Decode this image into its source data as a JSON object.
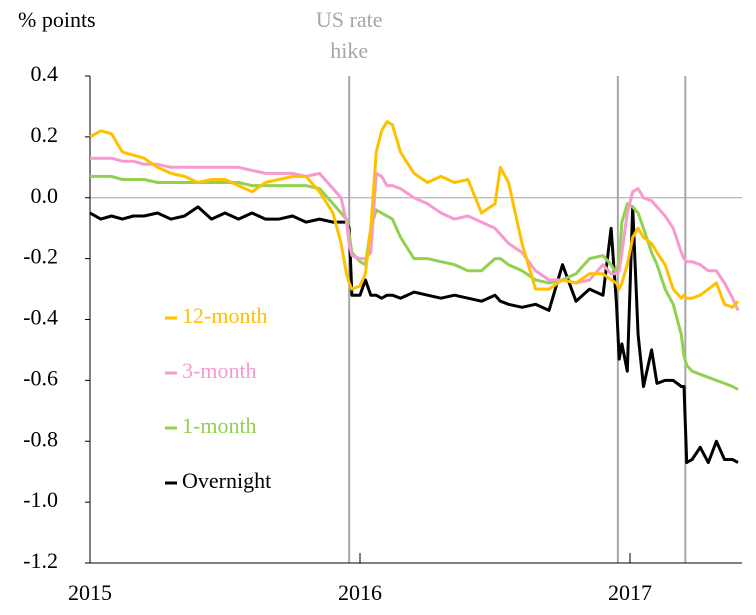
{
  "chart_data": {
    "type": "line",
    "y_label": "% points",
    "x": [
      2015.0,
      2015.04,
      2015.08,
      2015.12,
      2015.16,
      2015.2,
      2015.25,
      2015.3,
      2015.35,
      2015.4,
      2015.45,
      2015.5,
      2015.55,
      2015.6,
      2015.65,
      2015.7,
      2015.75,
      2015.8,
      2015.85,
      2015.9,
      2015.93,
      2015.95,
      2015.96,
      2015.97,
      2016.0,
      2016.02,
      2016.04,
      2016.06,
      2016.08,
      2016.1,
      2016.12,
      2016.15,
      2016.2,
      2016.25,
      2016.3,
      2016.35,
      2016.4,
      2016.45,
      2016.5,
      2016.52,
      2016.55,
      2016.6,
      2016.65,
      2016.7,
      2016.75,
      2016.8,
      2016.85,
      2016.9,
      2016.93,
      2016.95,
      2016.96,
      2016.97,
      2016.99,
      2017.01,
      2017.03,
      2017.05,
      2017.08,
      2017.1,
      2017.13,
      2017.16,
      2017.19,
      2017.2,
      2017.21,
      2017.23,
      2017.26,
      2017.29,
      2017.32,
      2017.35,
      2017.38,
      2017.4
    ],
    "series": [
      {
        "name": "Overnight",
        "color": "#000000",
        "width": 3,
        "values": [
          -0.05,
          -0.07,
          -0.06,
          -0.07,
          -0.06,
          -0.06,
          -0.05,
          -0.07,
          -0.06,
          -0.03,
          -0.07,
          -0.05,
          -0.07,
          -0.05,
          -0.07,
          -0.07,
          -0.06,
          -0.08,
          -0.07,
          -0.08,
          -0.08,
          -0.08,
          -0.1,
          -0.32,
          -0.32,
          -0.27,
          -0.32,
          -0.32,
          -0.33,
          -0.32,
          -0.32,
          -0.33,
          -0.31,
          -0.32,
          -0.33,
          -0.32,
          -0.33,
          -0.34,
          -0.32,
          -0.34,
          -0.35,
          -0.36,
          -0.35,
          -0.37,
          -0.22,
          -0.34,
          -0.3,
          -0.32,
          -0.1,
          -0.35,
          -0.53,
          -0.48,
          -0.57,
          -0.03,
          -0.45,
          -0.62,
          -0.5,
          -0.61,
          -0.6,
          -0.6,
          -0.62,
          -0.62,
          -0.87,
          -0.86,
          -0.82,
          -0.87,
          -0.8,
          -0.86,
          -0.86,
          -0.87
        ]
      },
      {
        "name": "1-month",
        "color": "#92d050",
        "width": 3,
        "values": [
          0.07,
          0.07,
          0.07,
          0.06,
          0.06,
          0.06,
          0.05,
          0.05,
          0.05,
          0.05,
          0.05,
          0.05,
          0.05,
          0.04,
          0.04,
          0.04,
          0.04,
          0.04,
          0.03,
          -0.02,
          -0.05,
          -0.07,
          -0.12,
          -0.18,
          -0.21,
          -0.22,
          -0.1,
          -0.04,
          -0.05,
          -0.06,
          -0.07,
          -0.13,
          -0.2,
          -0.2,
          -0.21,
          -0.22,
          -0.24,
          -0.24,
          -0.2,
          -0.2,
          -0.22,
          -0.24,
          -0.27,
          -0.28,
          -0.27,
          -0.25,
          -0.2,
          -0.19,
          -0.22,
          -0.25,
          -0.2,
          -0.08,
          -0.02,
          -0.03,
          -0.05,
          -0.1,
          -0.18,
          -0.22,
          -0.3,
          -0.35,
          -0.45,
          -0.52,
          -0.55,
          -0.57,
          -0.58,
          -0.59,
          -0.6,
          -0.61,
          -0.62,
          -0.63
        ]
      },
      {
        "name": "3-month",
        "color": "#f69ad0",
        "width": 3,
        "values": [
          0.13,
          0.13,
          0.13,
          0.12,
          0.12,
          0.11,
          0.11,
          0.1,
          0.1,
          0.1,
          0.1,
          0.1,
          0.1,
          0.09,
          0.08,
          0.08,
          0.08,
          0.07,
          0.08,
          0.03,
          0.0,
          -0.08,
          -0.15,
          -0.19,
          -0.2,
          -0.2,
          -0.18,
          0.08,
          0.07,
          0.04,
          0.04,
          0.03,
          0.0,
          -0.02,
          -0.05,
          -0.07,
          -0.06,
          -0.08,
          -0.1,
          -0.12,
          -0.15,
          -0.18,
          -0.24,
          -0.27,
          -0.27,
          -0.28,
          -0.27,
          -0.22,
          -0.25,
          -0.25,
          -0.24,
          -0.18,
          -0.05,
          0.02,
          0.03,
          0.0,
          -0.01,
          -0.03,
          -0.06,
          -0.1,
          -0.18,
          -0.2,
          -0.21,
          -0.21,
          -0.22,
          -0.24,
          -0.24,
          -0.28,
          -0.33,
          -0.37
        ]
      },
      {
        "name": "12-month",
        "color": "#ffc000",
        "width": 3,
        "values": [
          0.2,
          0.22,
          0.21,
          0.15,
          0.14,
          0.13,
          0.1,
          0.08,
          0.07,
          0.05,
          0.06,
          0.06,
          0.04,
          0.02,
          0.05,
          0.06,
          0.07,
          0.07,
          0.02,
          -0.05,
          -0.15,
          -0.25,
          -0.28,
          -0.3,
          -0.29,
          -0.25,
          -0.1,
          0.15,
          0.22,
          0.25,
          0.24,
          0.15,
          0.08,
          0.05,
          0.07,
          0.05,
          0.06,
          -0.05,
          -0.02,
          0.1,
          0.05,
          -0.15,
          -0.3,
          -0.3,
          -0.27,
          -0.28,
          -0.25,
          -0.25,
          -0.27,
          -0.28,
          -0.3,
          -0.28,
          -0.22,
          -0.13,
          -0.1,
          -0.13,
          -0.15,
          -0.18,
          -0.22,
          -0.3,
          -0.33,
          -0.32,
          -0.33,
          -0.33,
          -0.32,
          -0.3,
          -0.28,
          -0.35,
          -0.36,
          -0.34
        ]
      }
    ],
    "xlim": [
      2015,
      2017.4
    ],
    "xticks": [
      2015,
      2016,
      2017
    ],
    "ylim": [
      -1.2,
      0.4
    ],
    "yticks": [
      0.4,
      0.2,
      {
        "value": 0,
        "label": "0.0"
      },
      -0.2,
      -0.4,
      -0.6,
      -0.8,
      {
        "value": -1,
        "label": "-1.0"
      },
      -1.2
    ],
    "zero_line": true,
    "events": [
      {
        "x": 2015.96,
        "label": [
          "US rate",
          "hike"
        ]
      },
      {
        "x": 2016.955
      },
      {
        "x": 2017.205
      }
    ],
    "event_color": "#a6a6a6",
    "legend": "center-left"
  }
}
